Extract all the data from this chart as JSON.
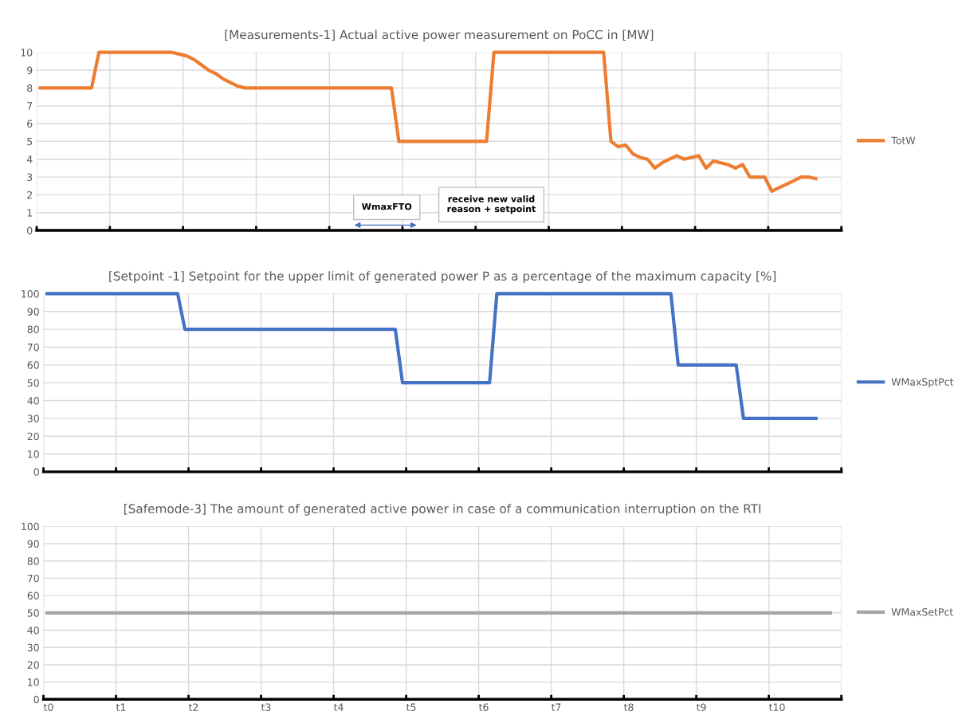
{
  "chart_data": [
    {
      "type": "line",
      "title": "[Measurements-1] Actual active power measurement on PoCC in [MW]",
      "ylim": [
        0,
        10
      ],
      "yticks": [
        0,
        1,
        2,
        3,
        4,
        5,
        6,
        7,
        8,
        9,
        10
      ],
      "tick_labels": "y",
      "grid": true,
      "legend": "right",
      "marker": "none",
      "line_style": "solid",
      "annotations": [
        "WmaxFTO",
        "receive new valid\nreason + setpoint"
      ],
      "categories": [
        null,
        null,
        null,
        null,
        null,
        null,
        null,
        null,
        null,
        null,
        null,
        null,
        null,
        null,
        null,
        null,
        null,
        null,
        null,
        null,
        null,
        null,
        null,
        null,
        null,
        null,
        null,
        null,
        null,
        null,
        null,
        null,
        null,
        null,
        null,
        null,
        null,
        null,
        null,
        null,
        null,
        null,
        null,
        null,
        null,
        null,
        null,
        null,
        null,
        null,
        null,
        null,
        null,
        null,
        null,
        null,
        null,
        null,
        null,
        null,
        null,
        null,
        null,
        null,
        null,
        null,
        null,
        null,
        null,
        null,
        null,
        null,
        null,
        null,
        null,
        null,
        null,
        null,
        null,
        null,
        null,
        null,
        null,
        null,
        null,
        null,
        null,
        null,
        null,
        null,
        null,
        null,
        null,
        null,
        null,
        null,
        null,
        null,
        null,
        null,
        null,
        null,
        null,
        null,
        null,
        null,
        null,
        null,
        null,
        null
      ],
      "series": [
        {
          "name": "TotW",
          "color": "#ed7d31",
          "values": [
            8,
            8,
            8,
            8,
            8,
            8,
            8,
            8,
            10,
            10,
            10,
            10,
            10,
            10,
            10,
            10,
            10,
            10,
            10,
            9.9,
            9.8,
            9.6,
            9.3,
            9.0,
            8.8,
            8.5,
            8.3,
            8.1,
            8.0,
            8,
            8,
            8,
            8,
            8,
            8,
            8,
            8,
            8,
            8,
            8,
            8,
            8,
            8,
            8,
            8,
            8,
            8,
            8,
            8,
            5,
            5,
            5,
            5,
            5,
            5,
            5,
            5,
            5,
            5,
            5,
            5,
            5,
            10,
            10,
            10,
            10,
            10,
            10,
            10,
            10,
            10,
            10,
            10,
            10,
            10,
            10,
            10,
            10,
            5,
            4.7,
            4.8,
            4.3,
            4.1,
            4.0,
            3.5,
            3.8,
            4.0,
            4.2,
            4.0,
            4.1,
            4.2,
            3.5,
            3.9,
            3.8,
            3.7,
            3.5,
            3.7,
            3.0,
            3.0,
            3.0,
            2.2,
            2.4,
            2.6,
            2.8,
            3.0,
            3.0,
            2.9,
            null,
            null,
            null
          ]
        }
      ]
    },
    {
      "type": "line",
      "title": "[Setpoint -1] Setpoint for the upper limit of generated power P as a percentage of the maximum capacity [%]",
      "ylim": [
        0,
        100
      ],
      "yticks": [
        0,
        10,
        20,
        30,
        40,
        50,
        60,
        70,
        80,
        90,
        100
      ],
      "tick_labels": "y",
      "grid": true,
      "legend": "right",
      "marker": "none",
      "line_style": "solid",
      "categories": [
        null,
        null,
        null,
        null,
        null,
        null,
        null,
        null,
        null,
        null,
        null,
        null,
        null,
        null,
        null,
        null,
        null,
        null,
        null,
        null,
        null,
        null,
        null,
        null,
        null,
        null,
        null,
        null,
        null,
        null,
        null,
        null,
        null,
        null,
        null,
        null,
        null,
        null,
        null,
        null,
        null,
        null,
        null,
        null,
        null,
        null,
        null,
        null,
        null,
        null,
        null,
        null,
        null,
        null,
        null,
        null,
        null,
        null,
        null,
        null,
        null,
        null,
        null,
        null,
        null,
        null,
        null,
        null,
        null,
        null,
        null,
        null,
        null,
        null,
        null,
        null,
        null,
        null,
        null,
        null,
        null,
        null,
        null,
        null,
        null,
        null,
        null,
        null,
        null,
        null,
        null,
        null,
        null,
        null,
        null,
        null,
        null,
        null,
        null,
        null,
        null,
        null,
        null,
        null,
        null,
        null,
        null,
        null,
        null,
        null
      ],
      "series": [
        {
          "name": "WMaxSptPct",
          "color": "#4472c4",
          "values": [
            100,
            100,
            100,
            100,
            100,
            100,
            100,
            100,
            100,
            100,
            100,
            100,
            100,
            100,
            100,
            100,
            100,
            100,
            100,
            80,
            80,
            80,
            80,
            80,
            80,
            80,
            80,
            80,
            80,
            80,
            80,
            80,
            80,
            80,
            80,
            80,
            80,
            80,
            80,
            80,
            80,
            80,
            80,
            80,
            80,
            80,
            80,
            80,
            80,
            50,
            50,
            50,
            50,
            50,
            50,
            50,
            50,
            50,
            50,
            50,
            50,
            50,
            100,
            100,
            100,
            100,
            100,
            100,
            100,
            100,
            100,
            100,
            100,
            100,
            100,
            100,
            100,
            100,
            100,
            100,
            100,
            100,
            100,
            100,
            100,
            100,
            100,
            60,
            60,
            60,
            60,
            60,
            60,
            60,
            60,
            60,
            30,
            30,
            30,
            30,
            30,
            30,
            30,
            30,
            30,
            30,
            30,
            null,
            null,
            null
          ]
        }
      ]
    },
    {
      "type": "line",
      "title": "[Safemode-3] The amount of generated active power in case of a communication interruption on the RTI",
      "ylim": [
        0,
        100
      ],
      "yticks": [
        0,
        10,
        20,
        30,
        40,
        50,
        60,
        70,
        80,
        90,
        100
      ],
      "grid": true,
      "legend": "right",
      "marker": "none",
      "line_style": "solid",
      "categories": [
        "t0",
        null,
        null,
        null,
        null,
        null,
        null,
        null,
        null,
        null,
        "t1",
        null,
        null,
        null,
        null,
        null,
        null,
        null,
        null,
        null,
        "t2",
        null,
        null,
        null,
        null,
        null,
        null,
        null,
        null,
        null,
        "t3",
        null,
        null,
        null,
        null,
        null,
        null,
        null,
        null,
        null,
        "t4",
        null,
        null,
        null,
        null,
        null,
        null,
        null,
        null,
        null,
        "t5",
        null,
        null,
        null,
        null,
        null,
        null,
        null,
        null,
        null,
        "t6",
        null,
        null,
        null,
        null,
        null,
        null,
        null,
        null,
        null,
        "t7",
        null,
        null,
        null,
        null,
        null,
        null,
        null,
        null,
        null,
        "t8",
        null,
        null,
        null,
        null,
        null,
        null,
        null,
        null,
        null,
        "t9",
        null,
        null,
        null,
        null,
        null,
        null,
        null,
        null,
        null,
        "t10",
        null,
        null,
        null,
        null,
        null,
        null,
        null,
        null,
        null
      ],
      "series": [
        {
          "name": "WMaxSetPct",
          "color": "#a5a5a5",
          "values": [
            50,
            50,
            50,
            50,
            50,
            50,
            50,
            50,
            50,
            50,
            50,
            50,
            50,
            50,
            50,
            50,
            50,
            50,
            50,
            50,
            50,
            50,
            50,
            50,
            50,
            50,
            50,
            50,
            50,
            50,
            50,
            50,
            50,
            50,
            50,
            50,
            50,
            50,
            50,
            50,
            50,
            50,
            50,
            50,
            50,
            50,
            50,
            50,
            50,
            50,
            50,
            50,
            50,
            50,
            50,
            50,
            50,
            50,
            50,
            50,
            50,
            50,
            50,
            50,
            50,
            50,
            50,
            50,
            50,
            50,
            50,
            50,
            50,
            50,
            50,
            50,
            50,
            50,
            50,
            50,
            50,
            50,
            50,
            50,
            50,
            50,
            50,
            50,
            50,
            50,
            50,
            50,
            50,
            50,
            50,
            50,
            50,
            50,
            50,
            50,
            50,
            50,
            50,
            50,
            50,
            50,
            50,
            50,
            50,
            null
          ]
        }
      ]
    }
  ]
}
